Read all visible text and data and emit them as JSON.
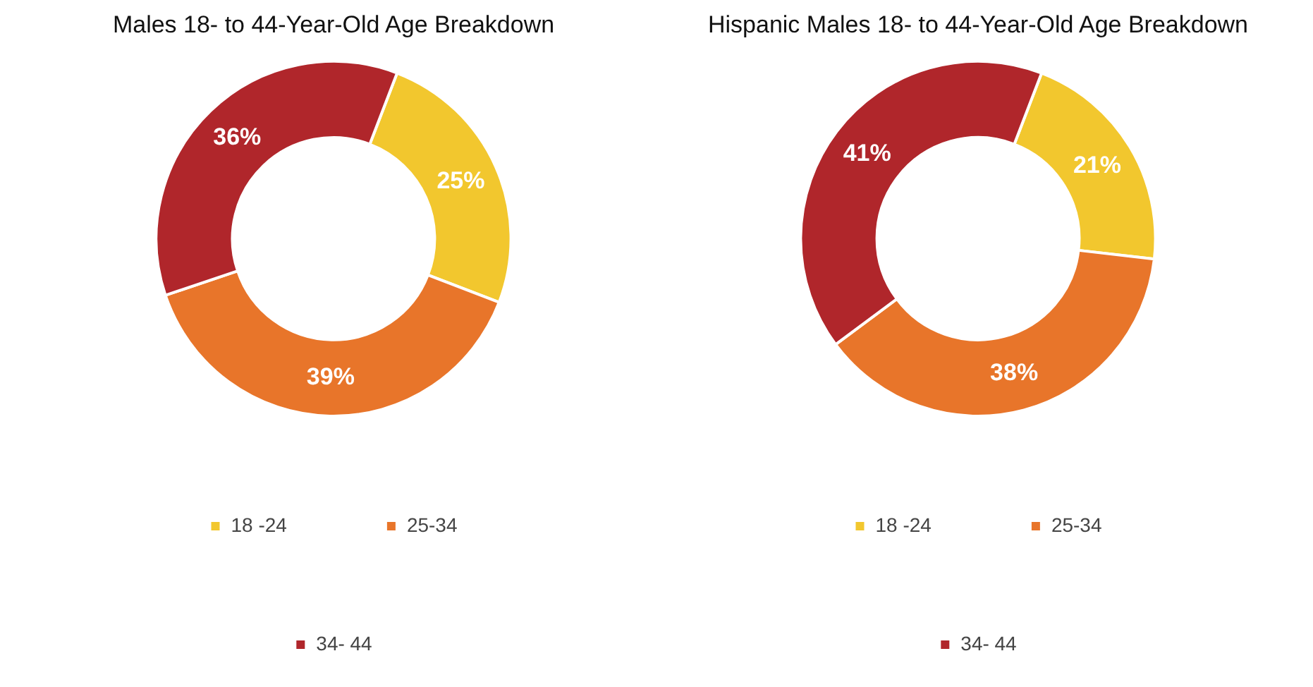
{
  "chart_data": [
    {
      "type": "donut",
      "title": "Males 18- to 44-Year-Old Age Breakdown",
      "categories": [
        "18 -24",
        "25-34",
        "34- 44"
      ],
      "values": [
        25,
        39,
        36
      ],
      "value_labels": [
        "25%",
        "39%",
        "36%"
      ],
      "colors": [
        "#f2c72e",
        "#e8752a",
        "#b0262b"
      ],
      "legend": "bottom"
    },
    {
      "type": "donut",
      "title": "Hispanic Males 18- to 44-Year-Old Age Breakdown",
      "categories": [
        "18 -24",
        "25-34",
        "34- 44"
      ],
      "values": [
        21,
        38,
        41
      ],
      "value_labels": [
        "21%",
        "38%",
        "41%"
      ],
      "colors": [
        "#f2c72e",
        "#e8752a",
        "#b0262b"
      ],
      "legend": "bottom"
    }
  ]
}
